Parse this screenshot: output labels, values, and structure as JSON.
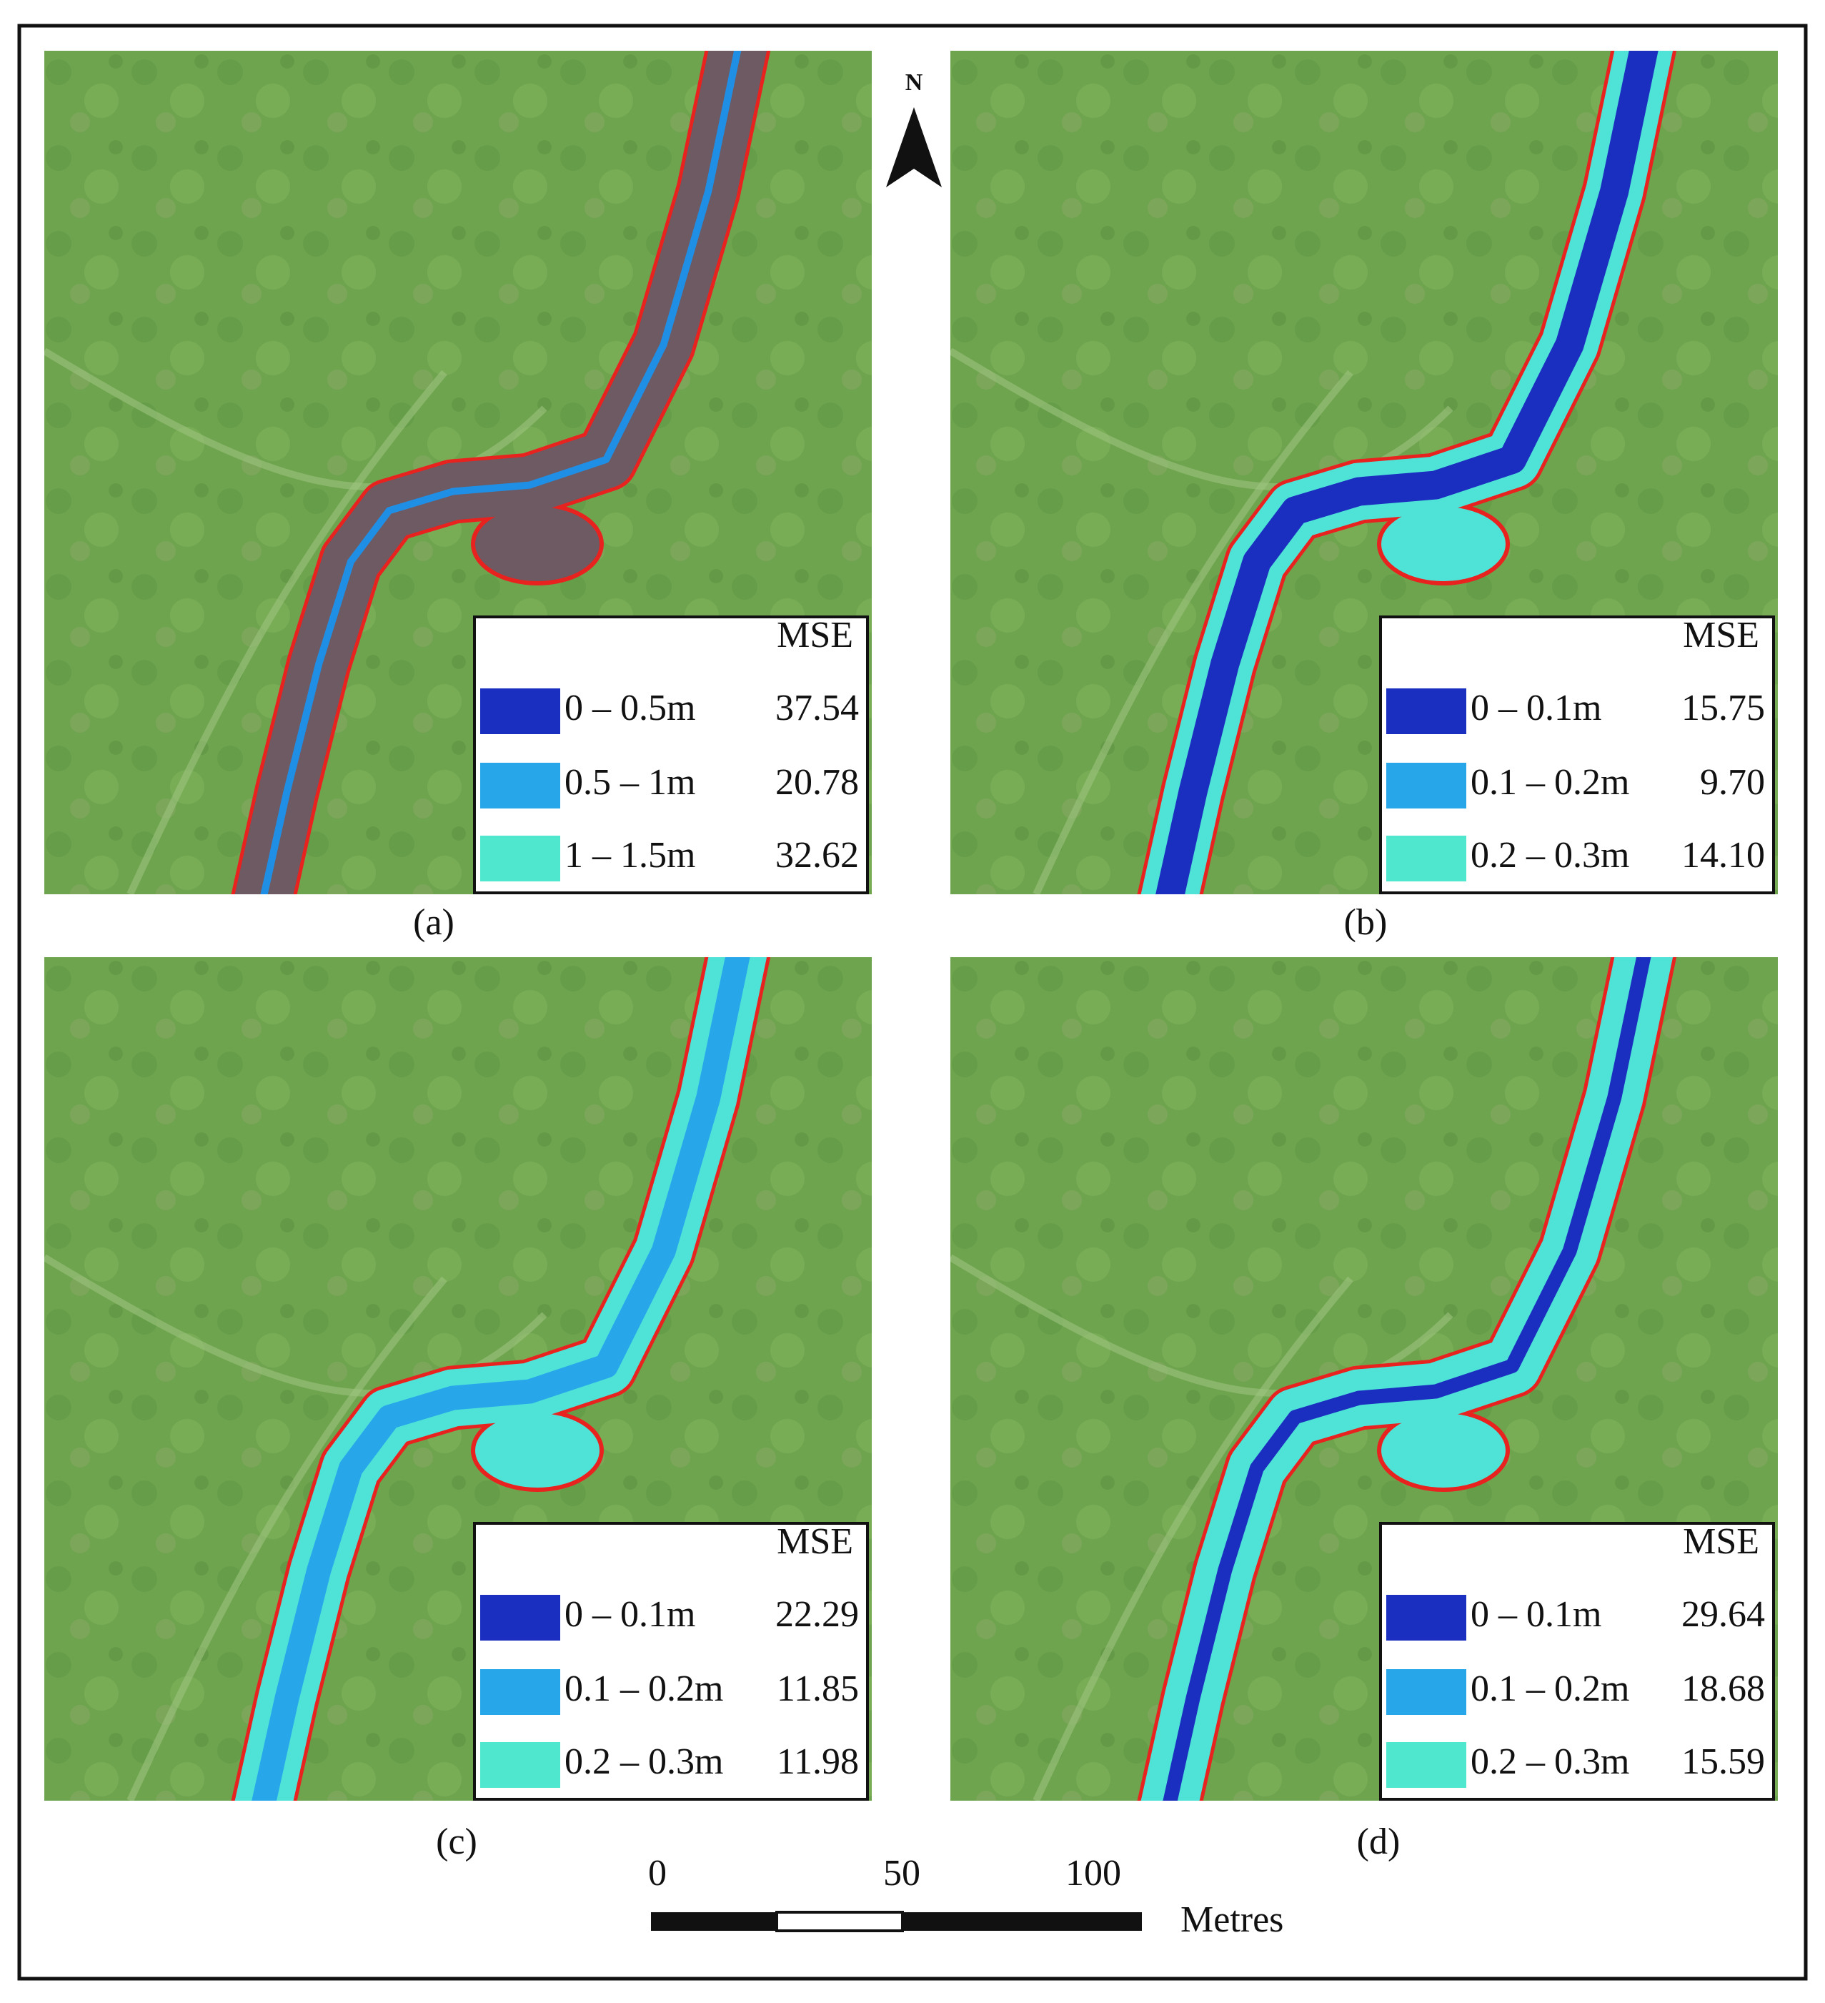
{
  "north": "N",
  "panels": [
    {
      "label": "(a)",
      "legend": {
        "header": "MSE",
        "rows": [
          {
            "range": "0 – 0.5m",
            "mse": "37.54"
          },
          {
            "range": "0.5 – 1m",
            "mse": "20.78"
          },
          {
            "range": "1 – 1.5m",
            "mse": "32.62"
          }
        ]
      }
    },
    {
      "label": "(b)",
      "legend": {
        "header": "MSE",
        "rows": [
          {
            "range": "0 – 0.1m",
            "mse": "15.75"
          },
          {
            "range": "0.1 – 0.2m",
            "mse": "9.70"
          },
          {
            "range": "0.2 – 0.3m",
            "mse": "14.10"
          }
        ]
      }
    },
    {
      "label": "(c)",
      "legend": {
        "header": "MSE",
        "rows": [
          {
            "range": "0 – 0.1m",
            "mse": "22.29"
          },
          {
            "range": "0.1 – 0.2m",
            "mse": "11.85"
          },
          {
            "range": "0.2 – 0.3m",
            "mse": "11.98"
          }
        ]
      }
    },
    {
      "label": "(d)",
      "legend": {
        "header": "MSE",
        "rows": [
          {
            "range": "0 – 0.1m",
            "mse": "29.64"
          },
          {
            "range": "0.1 – 0.2m",
            "mse": "18.68"
          },
          {
            "range": "0.2 – 0.3m",
            "mse": "15.59"
          }
        ]
      }
    }
  ],
  "scale_bar": {
    "ticks": [
      "0",
      "50",
      "100"
    ],
    "unit": "Metres"
  }
}
